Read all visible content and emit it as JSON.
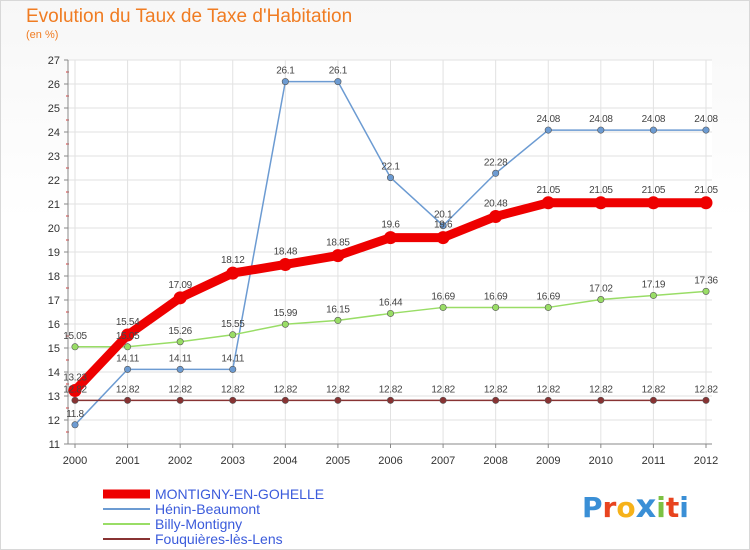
{
  "header": {
    "title": "Evolution du Taux de Taxe d'Habitation",
    "subtitle": "(en %)"
  },
  "logo": {
    "text": "Proxiti",
    "letters": [
      "P",
      "r",
      "o",
      "x",
      "i",
      "t",
      "i"
    ],
    "colors": [
      "#3a8fd6",
      "#e8441f",
      "#f6b21a",
      "#3a8fd6",
      "#7cc142",
      "#e8441f",
      "#3a8fd6"
    ]
  },
  "chart_data": {
    "type": "line",
    "title": "Evolution du Taux de Taxe d'Habitation",
    "subtitle": "(en %)",
    "xlabel": "",
    "ylabel": "",
    "categories": [
      "2000",
      "2001",
      "2002",
      "2003",
      "2004",
      "2005",
      "2006",
      "2007",
      "2008",
      "2009",
      "2010",
      "2011",
      "2012"
    ],
    "ylim": [
      11,
      27
    ],
    "yticks": [
      11,
      12,
      13,
      14,
      15,
      16,
      17,
      18,
      19,
      20,
      21,
      22,
      23,
      24,
      25,
      26,
      27
    ],
    "grid": true,
    "legend": "bottom-left",
    "series": [
      {
        "name": "MONTIGNY-EN-GOHELLE",
        "color": "#ee0000",
        "highlight": true,
        "values": [
          13.23,
          15.54,
          17.09,
          18.12,
          18.48,
          18.85,
          19.6,
          19.6,
          20.48,
          21.05,
          21.05,
          21.05,
          21.05
        ],
        "labels": [
          "13.23",
          "15.54",
          "17.09",
          "18.12",
          "18.48",
          "18.85",
          "19.6",
          "19.6",
          "20.48",
          "21.05",
          "21.05",
          "21.05",
          "21.05"
        ]
      },
      {
        "name": "Hénin-Beaumont",
        "color": "#6c9bd2",
        "highlight": false,
        "values": [
          11.8,
          14.11,
          14.11,
          14.11,
          26.1,
          26.1,
          22.1,
          20.1,
          22.28,
          24.08,
          24.08,
          24.08,
          24.08
        ],
        "labels": [
          "11.8",
          "14.11",
          "14.11",
          "14.11",
          "26.1",
          "26.1",
          "22.1",
          "20.1",
          "22.28",
          "24.08",
          "24.08",
          "24.08",
          "24.08"
        ]
      },
      {
        "name": "Billy-Montigny",
        "color": "#99dd66",
        "highlight": false,
        "values": [
          15.05,
          15.05,
          15.26,
          15.55,
          15.99,
          16.15,
          16.44,
          16.69,
          16.69,
          16.69,
          17.02,
          17.19,
          17.36
        ],
        "labels": [
          "15.05",
          "15.05",
          "15.26",
          "15.55",
          "15.99",
          "16.15",
          "16.44",
          "16.69",
          "16.69",
          "16.69",
          "17.02",
          "17.19",
          "17.36"
        ]
      },
      {
        "name": "Fouquières-lès-Lens",
        "color": "#883333",
        "highlight": false,
        "values": [
          12.82,
          12.82,
          12.82,
          12.82,
          12.82,
          12.82,
          12.82,
          12.82,
          12.82,
          12.82,
          12.82,
          12.82,
          12.82
        ],
        "labels": [
          "12.82",
          "12.82",
          "12.82",
          "12.82",
          "12.82",
          "12.82",
          "12.82",
          "12.82",
          "12.82",
          "12.82",
          "12.82",
          "12.82",
          "12.82"
        ]
      }
    ]
  }
}
